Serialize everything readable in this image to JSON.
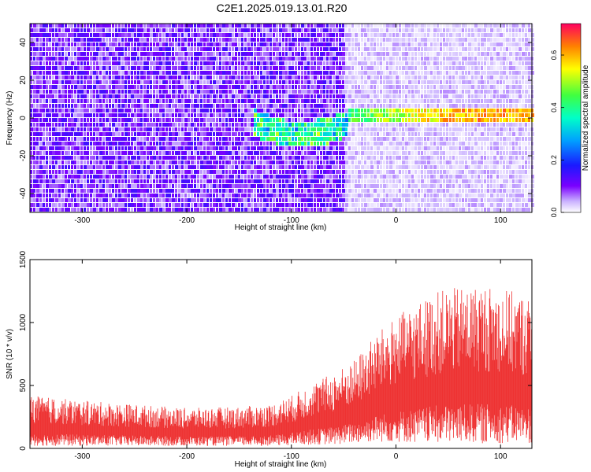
{
  "title": "C2E1.2025.019.13.01.R20",
  "colorbar": {
    "label": "Normalized spectral amplitude",
    "ticks": [
      "0.0",
      "0.2",
      "0.4",
      "0.6"
    ],
    "tick_values": [
      0.0,
      0.2,
      0.4,
      0.6
    ],
    "range": [
      0,
      0.72
    ]
  },
  "chart_data": [
    {
      "type": "heatmap",
      "xlabel": "Height of straight line (km)",
      "ylabel": "Frequency (Hz)",
      "xlim": [
        -350,
        130
      ],
      "ylim": [
        -50,
        50
      ],
      "xticks": [
        "-300",
        "-200",
        "-100",
        "0",
        "100"
      ],
      "xtick_values": [
        -300,
        -200,
        -100,
        0,
        100
      ],
      "yticks": [
        "-40",
        "-20",
        "0",
        "20",
        "40"
      ],
      "ytick_values": [
        -40,
        -20,
        0,
        20,
        40
      ],
      "colormap": "rainbow",
      "features": {
        "signal_line_freq_hz": 1,
        "signal_start_km": -45,
        "signal_peak_km": 90,
        "signal_peak_amplitude": 0.7,
        "noise_amplitude_left": 0.12,
        "noise_amplitude_right": 0.04,
        "background_transition_km": -50
      }
    },
    {
      "type": "area",
      "xlabel": "Height of straight line (km)",
      "ylabel": "SNR (10 * v/v)",
      "xlim": [
        -350,
        130
      ],
      "ylim": [
        0,
        1500
      ],
      "xticks": [
        "-300",
        "-200",
        "-100",
        "0",
        "100"
      ],
      "xtick_values": [
        -300,
        -200,
        -100,
        0,
        100
      ],
      "yticks": [
        "0",
        "500",
        "1000",
        "1500"
      ],
      "ytick_values": [
        0,
        500,
        1000,
        1500
      ],
      "color": "#ee3333",
      "envelope": {
        "x": [
          -350,
          -300,
          -250,
          -200,
          -150,
          -120,
          -100,
          -80,
          -60,
          -40,
          -20,
          0,
          20,
          40,
          60,
          80,
          100,
          130
        ],
        "upper": [
          420,
          380,
          350,
          320,
          330,
          350,
          420,
          520,
          600,
          700,
          900,
          1050,
          1150,
          1250,
          1280,
          1300,
          1280,
          1200
        ],
        "lower": [
          20,
          20,
          20,
          20,
          20,
          20,
          25,
          30,
          30,
          40,
          50,
          50,
          40,
          40,
          40,
          40,
          40,
          40
        ]
      }
    }
  ]
}
